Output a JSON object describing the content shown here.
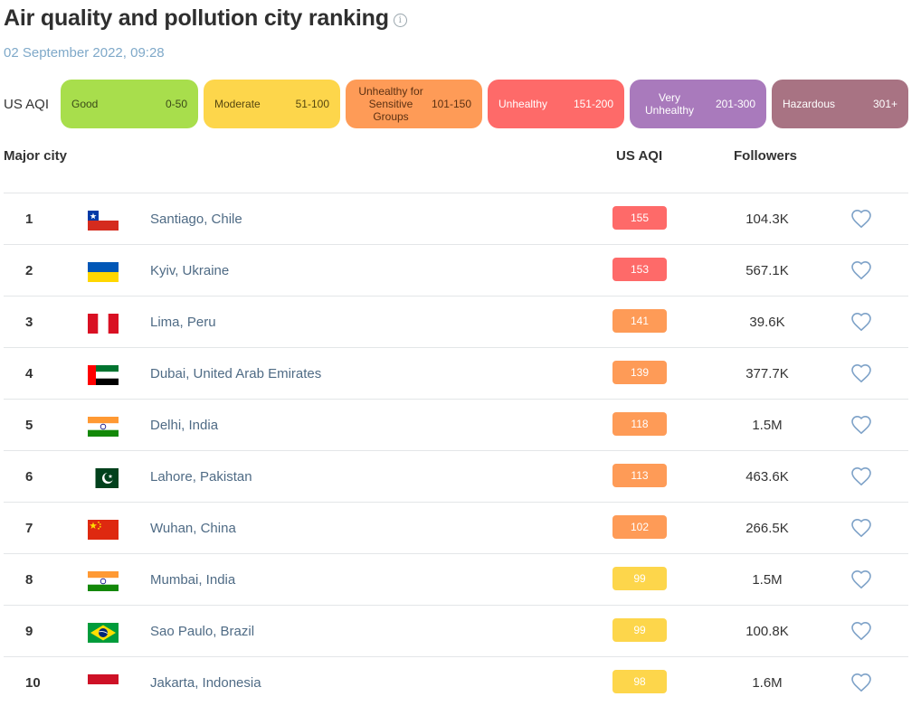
{
  "header": {
    "title": "Air quality and pollution city ranking",
    "timestamp": "02 September 2022, 09:28",
    "info_icon": "info-icon"
  },
  "legend": {
    "label": "US AQI",
    "items": [
      {
        "name": "Good",
        "range": "0-50",
        "color": "#a8de4c"
      },
      {
        "name": "Moderate",
        "range": "51-100",
        "color": "#fdd64b"
      },
      {
        "name": "Unhealthy for Sensitive Groups",
        "range": "101-150",
        "color": "#fe9b57"
      },
      {
        "name": "Unhealthy",
        "range": "151-200",
        "color": "#fe6a69"
      },
      {
        "name": "Very Unhealthy",
        "range": "201-300",
        "color": "#a97abc"
      },
      {
        "name": "Hazardous",
        "range": "301+",
        "color": "#a87383"
      }
    ]
  },
  "columns": {
    "city": "Major city",
    "aqi": "US AQI",
    "followers": "Followers"
  },
  "rows": [
    {
      "rank": "1",
      "city": "Santiago, Chile",
      "aqi": "155",
      "aqi_color": "#fe6a69",
      "followers": "104.3K",
      "flag": "chile"
    },
    {
      "rank": "2",
      "city": "Kyiv, Ukraine",
      "aqi": "153",
      "aqi_color": "#fe6a69",
      "followers": "567.1K",
      "flag": "ukraine"
    },
    {
      "rank": "3",
      "city": "Lima, Peru",
      "aqi": "141",
      "aqi_color": "#fe9b57",
      "followers": "39.6K",
      "flag": "peru"
    },
    {
      "rank": "4",
      "city": "Dubai, United Arab Emirates",
      "aqi": "139",
      "aqi_color": "#fe9b57",
      "followers": "377.7K",
      "flag": "uae"
    },
    {
      "rank": "5",
      "city": "Delhi, India",
      "aqi": "118",
      "aqi_color": "#fe9b57",
      "followers": "1.5M",
      "flag": "india"
    },
    {
      "rank": "6",
      "city": "Lahore, Pakistan",
      "aqi": "113",
      "aqi_color": "#fe9b57",
      "followers": "463.6K",
      "flag": "pakistan"
    },
    {
      "rank": "7",
      "city": "Wuhan, China",
      "aqi": "102",
      "aqi_color": "#fe9b57",
      "followers": "266.5K",
      "flag": "china"
    },
    {
      "rank": "8",
      "city": "Mumbai, India",
      "aqi": "99",
      "aqi_color": "#fdd64b",
      "followers": "1.5M",
      "flag": "india"
    },
    {
      "rank": "9",
      "city": "Sao Paulo, Brazil",
      "aqi": "99",
      "aqi_color": "#fdd64b",
      "followers": "100.8K",
      "flag": "brazil"
    },
    {
      "rank": "10",
      "city": "Jakarta, Indonesia",
      "aqi": "98",
      "aqi_color": "#fdd64b",
      "followers": "1.6M",
      "flag": "indonesia"
    }
  ]
}
